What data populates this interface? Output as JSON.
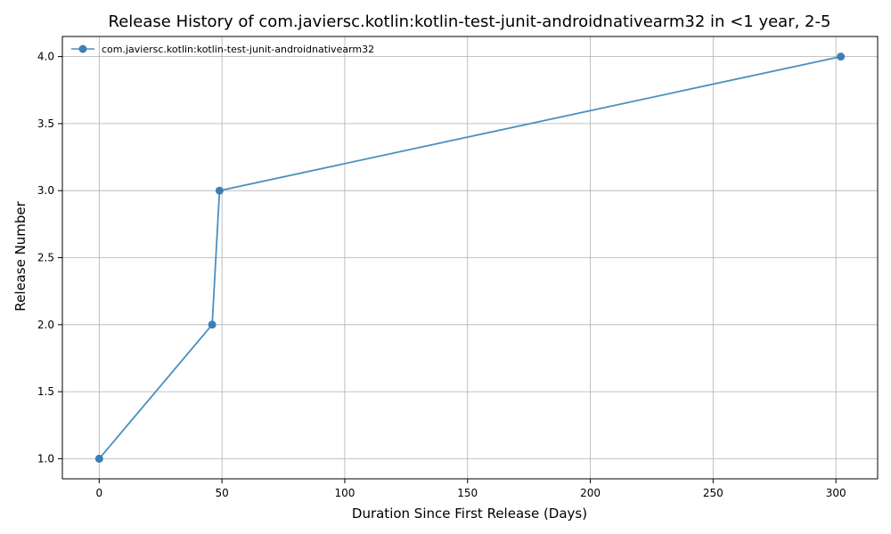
{
  "chart_data": {
    "type": "line",
    "title": "Release History of com.javiersc.kotlin:kotlin-test-junit-androidnativearm32 in <1 year, 2-5",
    "xlabel": "Duration Since First Release (Days)",
    "ylabel": "Release Number",
    "xlim": [
      -15,
      317
    ],
    "ylim": [
      0.85,
      4.15
    ],
    "xticks": [
      0,
      50,
      100,
      150,
      200,
      250,
      300
    ],
    "yticks": [
      1.0,
      1.5,
      2.0,
      2.5,
      3.0,
      3.5,
      4.0
    ],
    "xtick_labels": [
      "0",
      "50",
      "100",
      "150",
      "200",
      "250",
      "300"
    ],
    "ytick_labels": [
      "1.0",
      "1.5",
      "2.0",
      "2.5",
      "3.0",
      "3.5",
      "4.0"
    ],
    "grid": true,
    "legend_position": "top-left",
    "series": [
      {
        "name": "com.javiersc.kotlin:kotlin-test-junit-androidnativearm32",
        "color": "#4a90c0",
        "marker": "circle",
        "x": [
          0,
          46,
          49,
          302
        ],
        "y": [
          1,
          2,
          3,
          4
        ]
      }
    ]
  }
}
